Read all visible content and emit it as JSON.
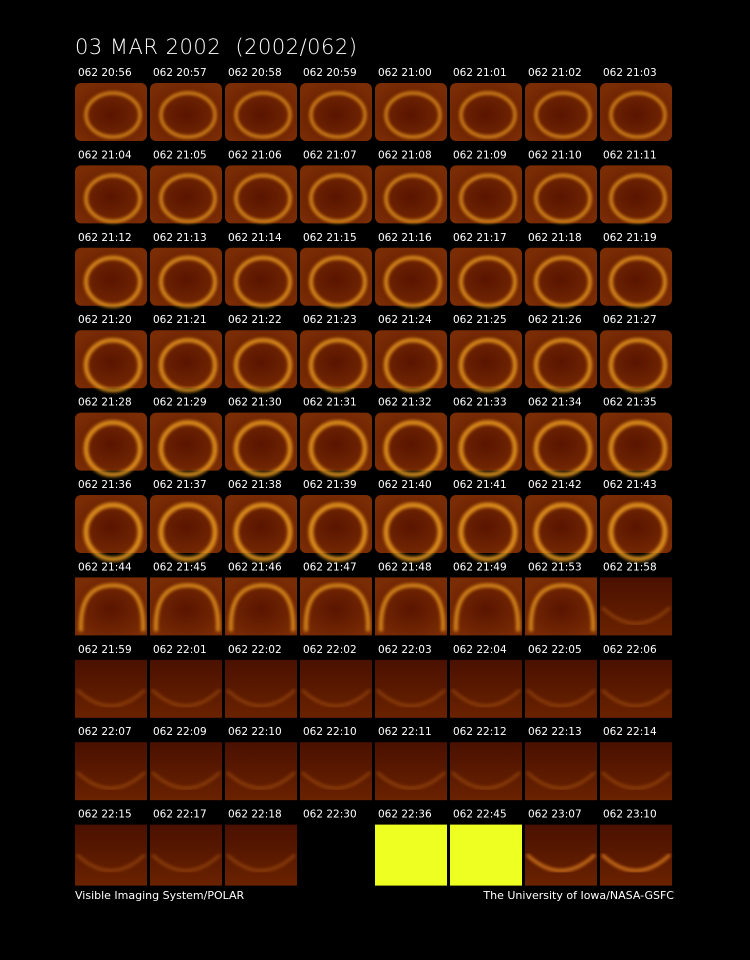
{
  "title": "03 MAR 2002  (2002/062)",
  "panels": [
    "062 20:56",
    "062 20:57",
    "062 20:58",
    "062 20:59",
    "062 21:00",
    "062 21:01",
    "062 21:02",
    "062 21:03",
    "062 21:04",
    "062 21:05",
    "062 21:06",
    "062 21:07",
    "062 21:08",
    "062 21:09",
    "062 21:10",
    "062 21:11",
    "062 21:12",
    "062 21:13",
    "062 21:14",
    "062 21:15",
    "062 21:16",
    "062 21:17",
    "062 21:18",
    "062 21:19",
    "062 21:20",
    "062 21:21",
    "062 21:22",
    "062 21:23",
    "062 21:24",
    "062 21:25",
    "062 21:26",
    "062 21:27",
    "062 21:28",
    "062 21:29",
    "062 21:30",
    "062 21:31",
    "062 21:32",
    "062 21:33",
    "062 21:34",
    "062 21:35",
    "062 21:36",
    "062 21:37",
    "062 21:38",
    "062 21:39",
    "062 21:40",
    "062 21:41",
    "062 21:42",
    "062 21:43",
    "062 21:44",
    "062 21:45",
    "062 21:46",
    "062 21:47",
    "062 21:48",
    "062 21:49",
    "062 21:53",
    "062 21:58",
    "062 21:59",
    "062 22:01",
    "062 22:02",
    "062 22:02",
    "062 22:03",
    "062 22:04",
    "062 22:05",
    "062 22:06",
    "062 22:07",
    "062 22:09",
    "062 22:10",
    "062 22:10",
    "062 22:11",
    "062 22:12",
    "062 22:13",
    "062 22:14",
    "062 22:15",
    "062 22:17",
    "062 22:18",
    "062 22:30",
    "062 22:36",
    "062 22:45",
    "062 23:07",
    "062 23:10"
  ],
  "footer": {
    "left": "Visible Imaging System/POLAR",
    "right": "The University of Iowa/NASA-GSFC"
  }
}
